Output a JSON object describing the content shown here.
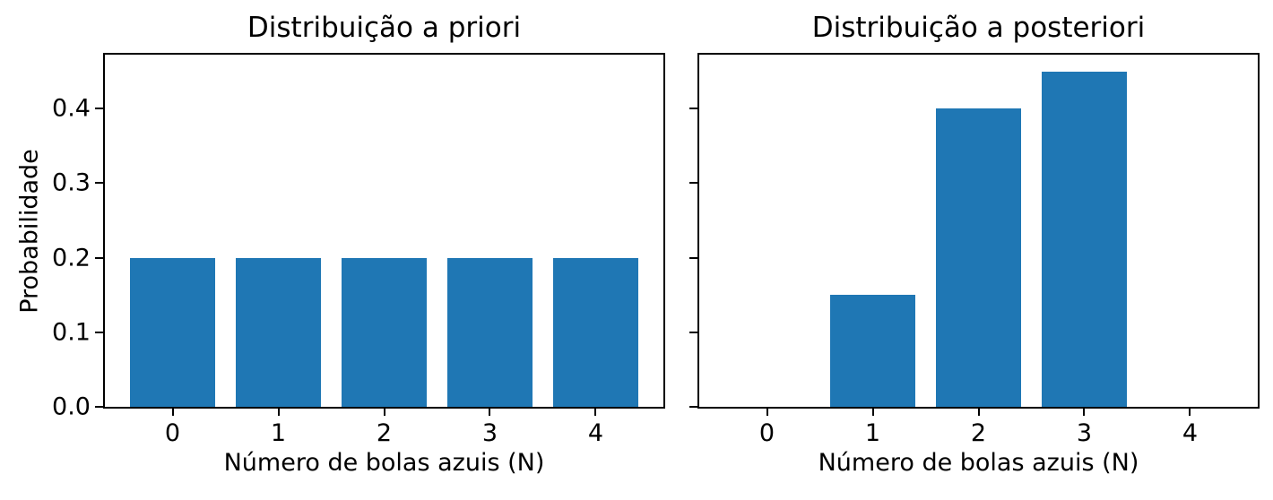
{
  "figure": {
    "background": "#ffffff",
    "text_color": "#000000",
    "spine_color": "#000000"
  },
  "chart_data": [
    {
      "type": "bar",
      "title": "Distribuição a priori",
      "xlabel": "Número de bolas azuis (N)",
      "ylabel": "Probabilidade",
      "categories": [
        0,
        1,
        2,
        3,
        4
      ],
      "values": [
        0.2,
        0.2,
        0.2,
        0.2,
        0.2
      ],
      "bar_color": "#1f77b4",
      "bar_width": 0.8,
      "xlim": [
        -0.64,
        4.64
      ],
      "ylim": [
        0,
        0.4725
      ],
      "xticks": [
        0,
        1,
        2,
        3,
        4
      ],
      "xtick_labels": [
        "0",
        "1",
        "2",
        "3",
        "4"
      ],
      "yticks": [
        0,
        0.1,
        0.2,
        0.3,
        0.4
      ],
      "ytick_labels": [
        "0.0",
        "0.1",
        "0.2",
        "0.3",
        "0.4"
      ],
      "show_ytick_labels": true,
      "grid": false,
      "legend": null
    },
    {
      "type": "bar",
      "title": "Distribuição a posteriori",
      "xlabel": "Número de bolas azuis (N)",
      "ylabel": "",
      "categories": [
        0,
        1,
        2,
        3,
        4
      ],
      "values": [
        0,
        0.15,
        0.4,
        0.45,
        0
      ],
      "bar_color": "#1f77b4",
      "bar_width": 0.8,
      "xlim": [
        -0.64,
        4.64
      ],
      "ylim": [
        0,
        0.4725
      ],
      "xticks": [
        0,
        1,
        2,
        3,
        4
      ],
      "xtick_labels": [
        "0",
        "1",
        "2",
        "3",
        "4"
      ],
      "yticks": [
        0,
        0.1,
        0.2,
        0.3,
        0.4
      ],
      "ytick_labels": [
        "0.0",
        "0.1",
        "0.2",
        "0.3",
        "0.4"
      ],
      "show_ytick_labels": false,
      "grid": false,
      "legend": null
    }
  ]
}
